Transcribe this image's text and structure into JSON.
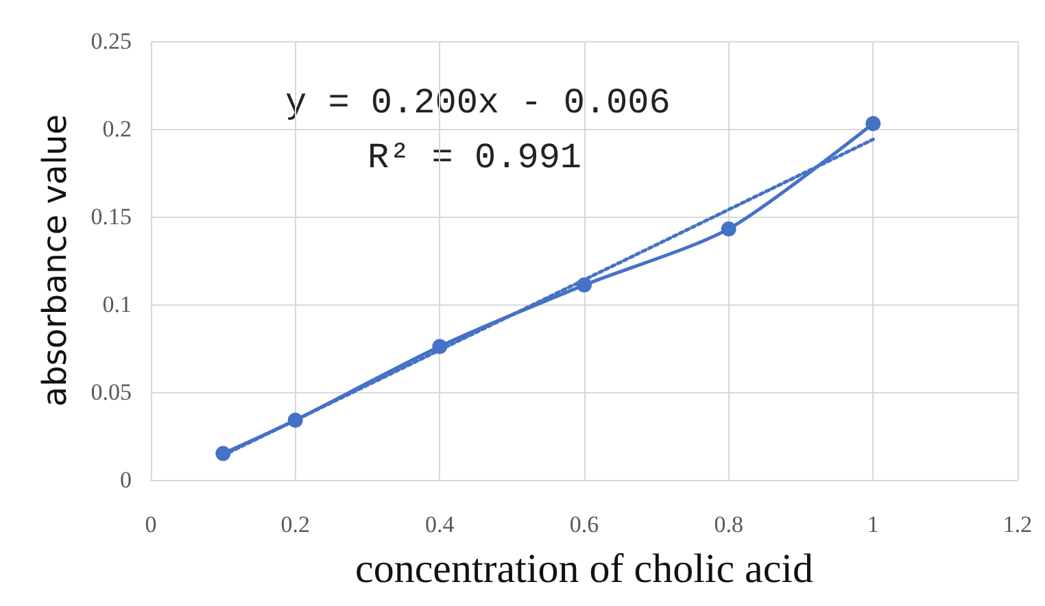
{
  "chart_data": {
    "type": "line",
    "xlabel": "concentration of cholic acid",
    "ylabel": "absorbance value",
    "x": [
      0.1,
      0.2,
      0.4,
      0.6,
      0.8,
      1.0
    ],
    "series": [
      {
        "color": "#4472c4",
        "values": [
          0.015,
          0.034,
          0.076,
          0.111,
          0.143,
          0.203
        ],
        "marker": "circle",
        "line_style": "solid"
      },
      {
        "color": "#4472c4",
        "x": [
          0.1,
          1.0
        ],
        "values": [
          0.014,
          0.194
        ],
        "marker": "none",
        "line_style": "dotted"
      }
    ],
    "annotations": [
      "y = 0.200x - 0.006",
      "R² = 0.991"
    ],
    "xlim": [
      0,
      1.2
    ],
    "xticks": [
      0,
      0.2,
      0.4,
      0.6,
      0.8,
      1,
      1.2
    ],
    "ylim": [
      0,
      0.25
    ],
    "yticks": [
      0,
      0.05,
      0.1,
      0.15,
      0.2,
      0.25
    ],
    "grid": true
  }
}
